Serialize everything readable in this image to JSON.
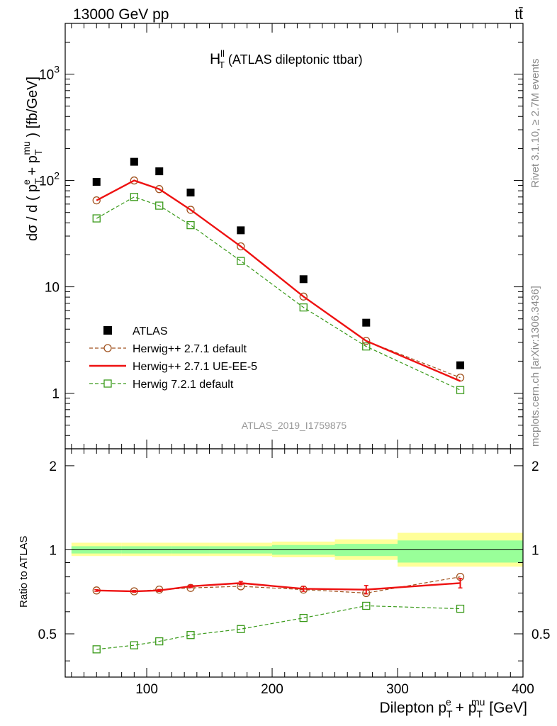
{
  "header": {
    "energy": "13000 GeV pp",
    "process": "tt̄"
  },
  "side": {
    "rivet": "Rivet 3.1.10, ≥ 2.7M events",
    "mcplots": "mcplots.cern.ch [arXiv:1306.3436]"
  },
  "analysis_id": "ATLAS_2019_I1759875",
  "chart_data": [
    {
      "type": "line",
      "panel": "main",
      "title": "H",
      "title_sup": "ll",
      "title_sub": "T",
      "title_rest": " (ATLAS dileptonic ttbar)",
      "ylabel_pre": "dσ / d ( p",
      "ylabel_sub1": "T",
      "ylabel_sup1": "e",
      "ylabel_mid": " + p",
      "ylabel_sub2": "T",
      "ylabel_sup2": "mu",
      "ylabel_post": " ) [fb/GeV]",
      "yscale": "log",
      "ylim": [
        0.3,
        3000
      ],
      "xlim": [
        35,
        400
      ],
      "yticks": [
        {
          "v": 1,
          "label": "1"
        },
        {
          "v": 10,
          "label": "10"
        },
        {
          "v": 100,
          "label": "10",
          "sup": "2"
        },
        {
          "v": 1000,
          "label": "10",
          "sup": "3"
        }
      ],
      "legend_position": "lower-left",
      "x": [
        60,
        90,
        110,
        135,
        175,
        225,
        275,
        350
      ],
      "series": [
        {
          "name": "ATLAS",
          "marker": "filled-square",
          "color": "#000000",
          "values": [
            97,
            150,
            122,
            77,
            34,
            11.8,
            4.6,
            1.83
          ]
        },
        {
          "name": "Herwig++ 2.7.1 default",
          "marker": "open-circle",
          "line": "dashed",
          "color": "#a0521e",
          "values": [
            65,
            100,
            83,
            53,
            24,
            8.1,
            3.1,
            1.4
          ]
        },
        {
          "name": "Herwig++ 2.7.1 UE-EE-5",
          "marker": "none",
          "line": "solid",
          "color": "#ee1111",
          "values": [
            65,
            100,
            83,
            53,
            24,
            8.1,
            3.1,
            1.3
          ]
        },
        {
          "name": "Herwig 7.2.1 default",
          "marker": "open-square",
          "line": "dashed",
          "color": "#3a9a1a",
          "values": [
            44,
            70,
            58,
            38,
            17.5,
            6.4,
            2.75,
            1.07
          ]
        }
      ]
    },
    {
      "type": "line",
      "panel": "ratio",
      "ylabel": "Ratio to ATLAS",
      "xlabel_pre": "Dilepton p",
      "xlabel_sub1": "T",
      "xlabel_sup1": "e",
      "xlabel_mid": " + p",
      "xlabel_sub2": "T",
      "xlabel_sup2": "mu",
      "xlabel_post": " [GeV]",
      "xlim": [
        35,
        400
      ],
      "ylim": [
        0.35,
        2.3
      ],
      "yscale": "log",
      "yticks": [
        {
          "v": 0.5,
          "label": "0.5"
        },
        {
          "v": 1,
          "label": "1"
        },
        {
          "v": 2,
          "label": "2"
        }
      ],
      "xticks": [
        {
          "v": 100,
          "label": "100"
        },
        {
          "v": 200,
          "label": "200"
        },
        {
          "v": 300,
          "label": "300"
        },
        {
          "v": 400,
          "label": "400"
        }
      ],
      "x": [
        60,
        90,
        110,
        135,
        175,
        225,
        275,
        350
      ],
      "bins": [
        [
          40,
          80
        ],
        [
          80,
          100
        ],
        [
          100,
          120
        ],
        [
          120,
          150
        ],
        [
          150,
          200
        ],
        [
          200,
          250
        ],
        [
          250,
          300
        ],
        [
          300,
          400
        ]
      ],
      "band_yellow": [
        [
          0.95,
          1.06
        ],
        [
          0.95,
          1.06
        ],
        [
          0.95,
          1.06
        ],
        [
          0.95,
          1.06
        ],
        [
          0.95,
          1.06
        ],
        [
          0.94,
          1.07
        ],
        [
          0.92,
          1.09
        ],
        [
          0.87,
          1.15
        ]
      ],
      "band_green": [
        [
          0.97,
          1.03
        ],
        [
          0.97,
          1.03
        ],
        [
          0.97,
          1.03
        ],
        [
          0.97,
          1.03
        ],
        [
          0.97,
          1.03
        ],
        [
          0.96,
          1.04
        ],
        [
          0.95,
          1.05
        ],
        [
          0.9,
          1.08
        ]
      ],
      "series": [
        {
          "name": "Herwig++ 2.7.1 default",
          "marker": "open-circle",
          "line": "dashed",
          "color": "#a0521e",
          "values": [
            0.715,
            0.71,
            0.72,
            0.73,
            0.74,
            0.72,
            0.7,
            0.8
          ]
        },
        {
          "name": "Herwig++ 2.7.1 UE-EE-5",
          "marker": "none",
          "line": "solid",
          "color": "#ee1111",
          "values": [
            0.715,
            0.71,
            0.715,
            0.74,
            0.76,
            0.725,
            0.72,
            0.76
          ],
          "errors": [
            0.005,
            0.005,
            0.006,
            0.008,
            0.01,
            0.015,
            0.025,
            0.03
          ]
        },
        {
          "name": "Herwig 7.2.1 default",
          "marker": "open-square",
          "line": "dashed",
          "color": "#3a9a1a",
          "values": [
            0.44,
            0.455,
            0.47,
            0.495,
            0.52,
            0.57,
            0.63,
            0.615
          ]
        }
      ]
    }
  ]
}
